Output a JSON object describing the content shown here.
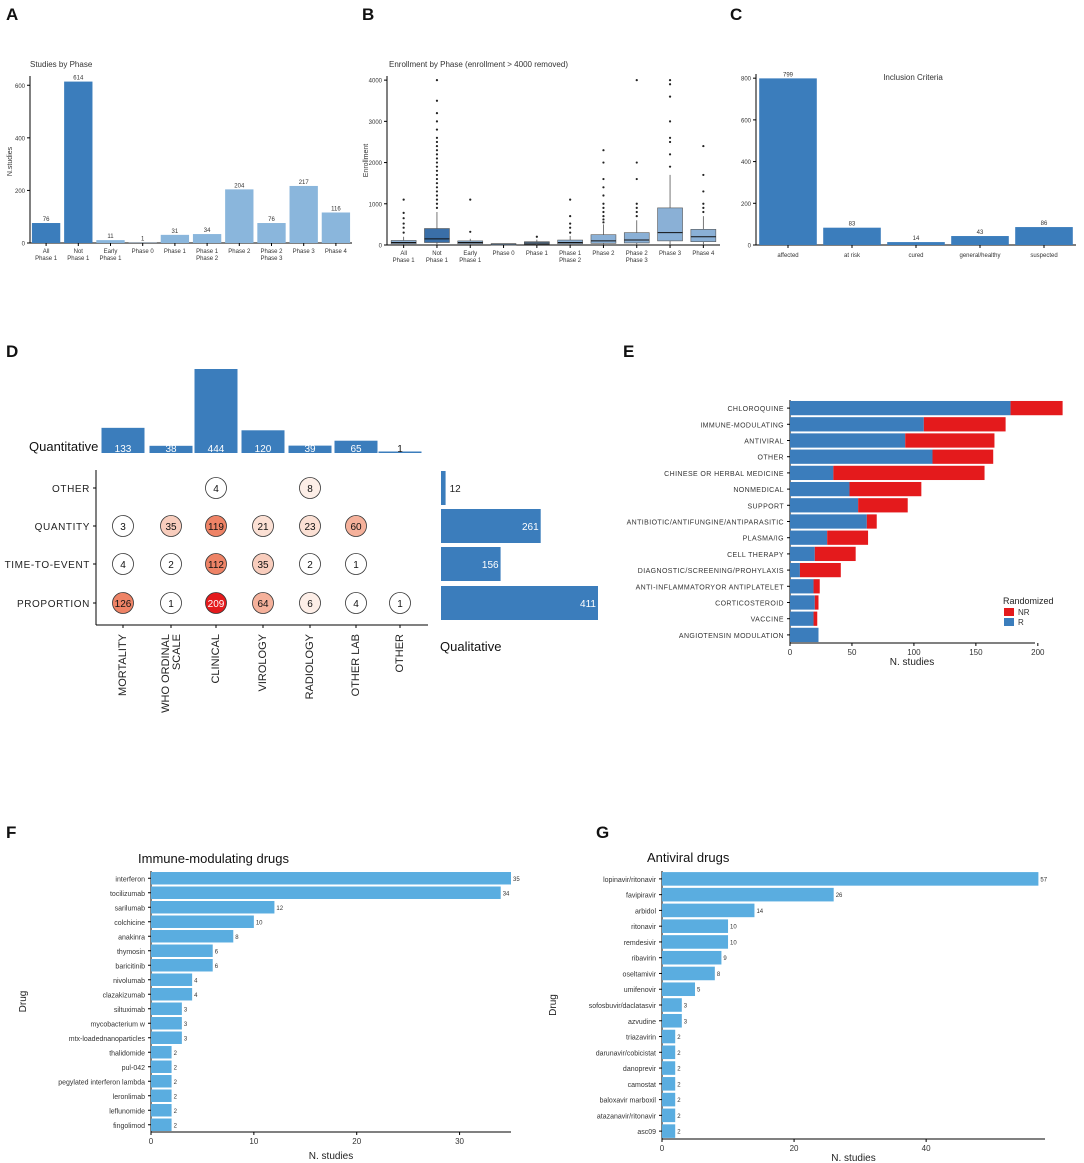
{
  "panel_labels": {
    "A": "A",
    "B": "B",
    "C": "C",
    "D": "D",
    "E": "E",
    "F": "F",
    "G": "G"
  },
  "colors": {
    "dark_blue": "#3b7dbc",
    "light_blue": "#8ab6dc",
    "sky_blue": "#5aade0",
    "red": "#e41a1c",
    "box_fill": "#8ab0d6"
  },
  "chart_data": [
    {
      "id": "A",
      "type": "bar",
      "title": "Studies by Phase",
      "ylabel": "N.studies",
      "xlabel": "",
      "ylim": [
        0,
        620
      ],
      "yticks": [
        0,
        200,
        400,
        600
      ],
      "categories": [
        "All\nPhase 1",
        "Not\nPhase 1",
        "Early\nPhase 1",
        "Phase 0",
        "Phase 1",
        "Phase 1\nPhase 2",
        "Phase 2",
        "Phase 2\nPhase 3",
        "Phase 3",
        "Phase 4"
      ],
      "values": [
        76,
        614,
        11,
        1,
        31,
        34,
        204,
        76,
        217,
        116
      ],
      "highlight": [
        true,
        true,
        false,
        false,
        false,
        false,
        false,
        false,
        false,
        false
      ]
    },
    {
      "id": "B",
      "type": "box",
      "title": "Enrollment by Phase  (enrollment > 4000 removed)",
      "ylabel": "Enrollment",
      "ylim": [
        0,
        4100
      ],
      "yticks": [
        0,
        1000,
        2000,
        3000,
        4000
      ],
      "categories": [
        "All\nPhase 1",
        "Not\nPhase 1",
        "Early\nPhase 1",
        "Phase 0",
        "Phase 1",
        "Phase 1\nPhase 2",
        "Phase 2",
        "Phase 2\nPhase 3",
        "Phase 3",
        "Phase 4"
      ],
      "boxes": [
        {
          "q1": 30,
          "med": 60,
          "q3": 110,
          "lo": 0,
          "hi": 200,
          "outliers": [
            300,
            420,
            520,
            650,
            780,
            1100
          ]
        },
        {
          "q1": 60,
          "med": 150,
          "q3": 400,
          "lo": 0,
          "hi": 800,
          "outliers": [
            900,
            1000,
            1100,
            1200,
            1300,
            1400,
            1500,
            1600,
            1700,
            1800,
            1900,
            2000,
            2100,
            2200,
            2300,
            2400,
            2500,
            2600,
            2800,
            3000,
            3200,
            3500,
            4000
          ]
        },
        {
          "q1": 30,
          "med": 60,
          "q3": 100,
          "lo": 0,
          "hi": 150,
          "outliers": [
            320,
            1100
          ]
        },
        {
          "q1": 20,
          "med": 25,
          "q3": 30,
          "lo": 20,
          "hi": 30,
          "outliers": []
        },
        {
          "q1": 20,
          "med": 50,
          "q3": 80,
          "lo": 0,
          "hi": 130,
          "outliers": [
            200
          ]
        },
        {
          "q1": 30,
          "med": 60,
          "q3": 120,
          "lo": 0,
          "hi": 220,
          "outliers": [
            300,
            420,
            520,
            700,
            1100
          ]
        },
        {
          "q1": 40,
          "med": 100,
          "q3": 250,
          "lo": 0,
          "hi": 500,
          "outliers": [
            550,
            620,
            700,
            800,
            900,
            1000,
            1200,
            1400,
            1600,
            2000,
            2300
          ]
        },
        {
          "q1": 50,
          "med": 120,
          "q3": 300,
          "lo": 0,
          "hi": 600,
          "outliers": [
            700,
            800,
            900,
            1000,
            1600,
            2000,
            4000
          ]
        },
        {
          "q1": 100,
          "med": 300,
          "q3": 900,
          "lo": 0,
          "hi": 1700,
          "outliers": [
            1900,
            2200,
            2500,
            2600,
            3000,
            3600,
            3900,
            4000
          ]
        },
        {
          "q1": 80,
          "med": 200,
          "q3": 380,
          "lo": 0,
          "hi": 700,
          "outliers": [
            800,
            900,
            1000,
            1300,
            1700,
            2400
          ]
        }
      ]
    },
    {
      "id": "C",
      "type": "bar",
      "title": "Inclusion Criteria",
      "ylim": [
        0,
        820
      ],
      "yticks": [
        0,
        200,
        400,
        600,
        800
      ],
      "categories": [
        "affected",
        "at risk",
        "cured",
        "general/healthy",
        "suspected"
      ],
      "values": [
        799,
        83,
        14,
        43,
        86
      ]
    },
    {
      "id": "D",
      "type": "matrix",
      "top_label": "Quantitative",
      "right_label": "Qualitative",
      "columns": [
        "MORTALITY",
        "WHO ORDINAL SCALE",
        "CLINICAL",
        "VIROLOGY",
        "RADIOLOGY",
        "OTHER LAB",
        "OTHER"
      ],
      "column_display": [
        [
          "MORTALITY"
        ],
        [
          "WHO ORDINAL",
          "SCALE"
        ],
        [
          "CLINICAL"
        ],
        [
          "VIROLOGY"
        ],
        [
          "RADIOLOGY"
        ],
        [
          "OTHER LAB"
        ],
        [
          "OTHER"
        ]
      ],
      "column_totals": [
        133,
        38,
        444,
        120,
        39,
        65,
        1
      ],
      "rows": [
        "OTHER",
        "QUANTITY",
        "TIME-TO-EVENT",
        "PROPORTION"
      ],
      "row_totals": [
        12,
        261,
        156,
        411
      ],
      "cells": [
        [
          null,
          null,
          4,
          null,
          8,
          null,
          null
        ],
        [
          3,
          35,
          119,
          21,
          23,
          60,
          null
        ],
        [
          4,
          2,
          112,
          35,
          2,
          1,
          null
        ],
        [
          126,
          1,
          209,
          64,
          6,
          4,
          1
        ]
      ]
    },
    {
      "id": "E",
      "type": "stacked-bar-horizontal",
      "xlabel": "N. studies",
      "xlim": [
        0,
        230
      ],
      "xticks": [
        0,
        50,
        100,
        150,
        200
      ],
      "legend_title": "Randomized",
      "legend": [
        "NR",
        "R"
      ],
      "categories": [
        "CHLOROQUINE",
        "IMMUNE-MODULATING",
        "ANTIVIRAL",
        "OTHER",
        "CHINESE OR HERBAL MEDICINE",
        "NONMEDICAL",
        "SUPPORT",
        "ANTIBIOTIC/ANTIFUNGINE/ANTIPARASITIC",
        "PLASMA/IG",
        "CELL THERAPY",
        "DIAGNOSTIC/SCREENING/PROHYLAXIS",
        "ANTI-INFLAMMATORYOR ANTIPLATELET",
        "CORTICOSTEROID",
        "VACCINE",
        "ANGIOTENSIN MODULATION"
      ],
      "series": [
        {
          "name": "R",
          "values": [
            178,
            108,
            93,
            115,
            35,
            48,
            55,
            62,
            30,
            20,
            8,
            19,
            20,
            19,
            23
          ]
        },
        {
          "name": "NR",
          "values": [
            42,
            66,
            72,
            49,
            122,
            58,
            40,
            8,
            33,
            33,
            33,
            5,
            3,
            3,
            0
          ]
        }
      ]
    },
    {
      "id": "F",
      "type": "bar-horizontal",
      "title": "Immune-modulating drugs",
      "xlabel": "N. studies",
      "ylabel": "Drug",
      "xlim": [
        0,
        35
      ],
      "xticks": [
        0,
        10,
        20,
        30
      ],
      "categories": [
        "interferon",
        "tocilizumab",
        "sarilumab",
        "colchicine",
        "anakinra",
        "thymosin",
        "baricitinib",
        "nivolumab",
        "clazakizumab",
        "siltuximab",
        "mycobacterium w",
        "mtx-loadednanoparticles",
        "thalidomide",
        "pul-042",
        "pegylated interferon lambda",
        "leronlimab",
        "leflunomide",
        "fingolimod"
      ],
      "values": [
        35,
        34,
        12,
        10,
        8,
        6,
        6,
        4,
        4,
        3,
        3,
        3,
        2,
        2,
        2,
        2,
        2,
        2
      ]
    },
    {
      "id": "G",
      "type": "bar-horizontal",
      "title": "Antiviral drugs",
      "xlabel": "N. studies",
      "ylabel": "Drug",
      "xlim": [
        0,
        58
      ],
      "xticks": [
        0,
        20,
        40
      ],
      "categories": [
        "lopinavir/ritonavir",
        "favipiravir",
        "arbidol",
        "ritonavir",
        "remdesivir",
        "ribavirin",
        "oseltamivir",
        "umifenovir",
        "sofosbuvir/daclatasvir",
        "azvudine",
        "triazavirin",
        "darunavir/cobicistat",
        "danoprevir",
        "camostat",
        "baloxavir marboxil",
        "atazanavir/ritonavir",
        "asc09"
      ],
      "values": [
        57,
        26,
        14,
        10,
        10,
        9,
        8,
        5,
        3,
        3,
        2,
        2,
        2,
        2,
        2,
        2,
        2
      ]
    }
  ]
}
